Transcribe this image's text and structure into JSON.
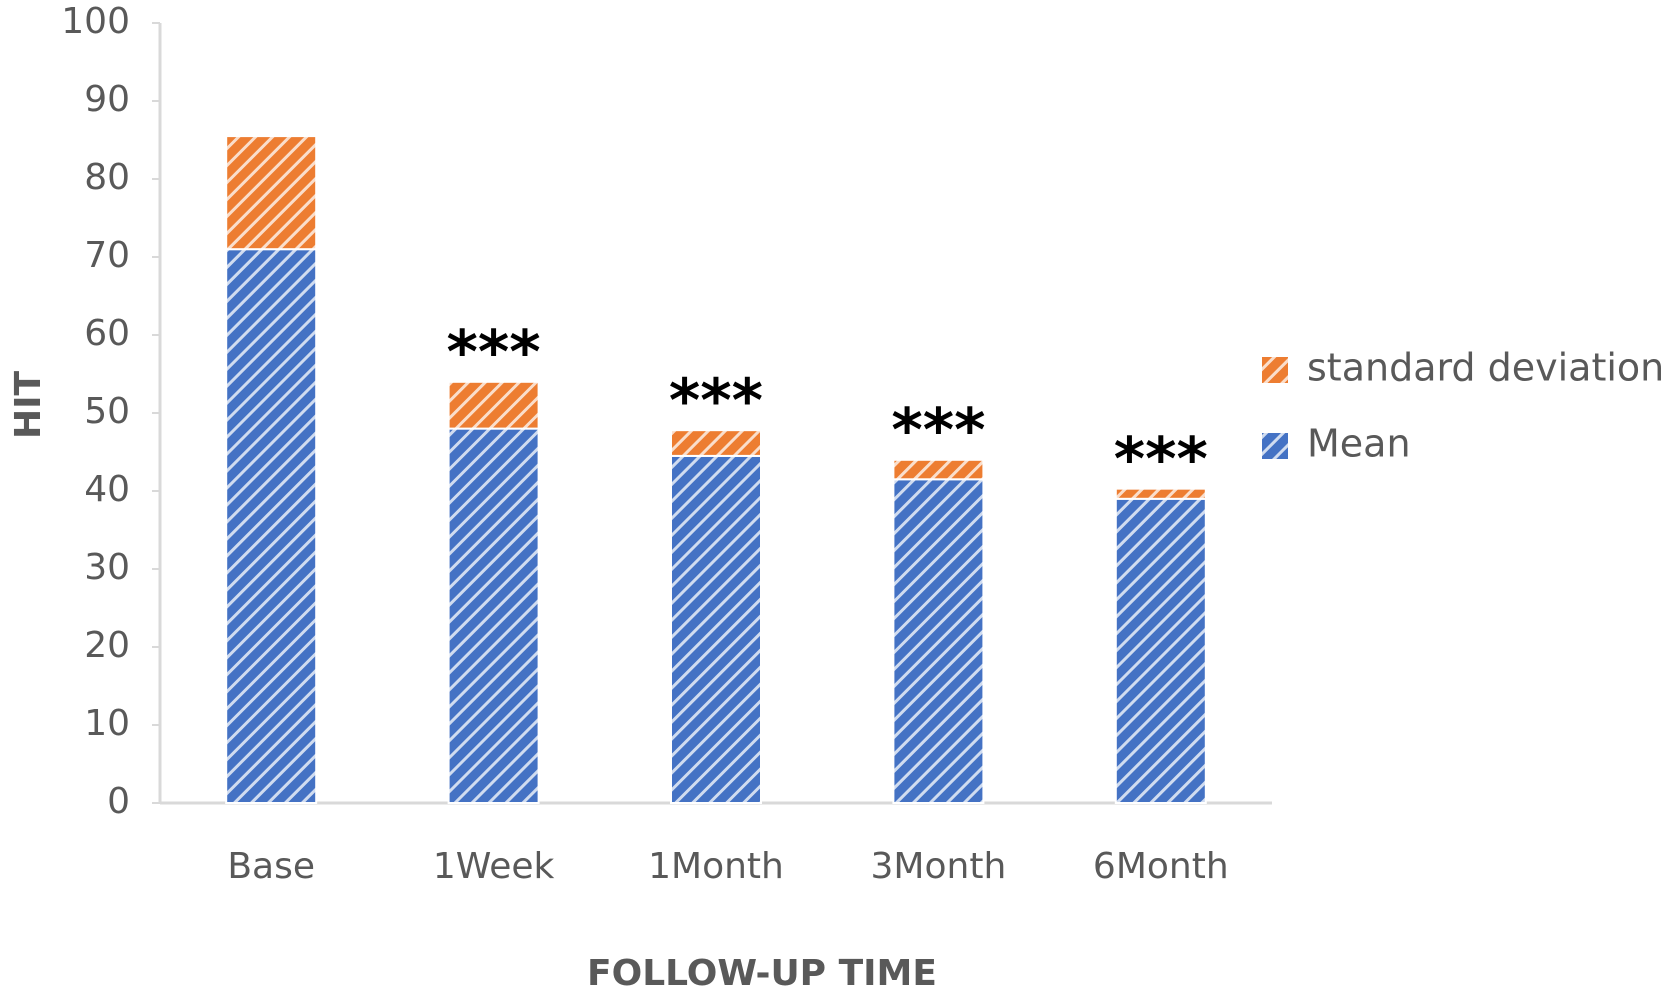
{
  "chart_data": {
    "type": "stacked_bar",
    "x_label": "FOLLOW-UP TIME",
    "y_label": "HIT",
    "categories": [
      "Base",
      "1Week",
      "1Month",
      "3Month",
      "6Month"
    ],
    "series": [
      {
        "name": "Mean",
        "color": "#4472c4",
        "values": [
          71,
          48,
          44.5,
          41.5,
          39
        ]
      },
      {
        "name": "standard deviation",
        "color": "#ed7d31",
        "values": [
          14.5,
          6,
          3.3,
          2.5,
          1.3
        ]
      }
    ],
    "significance": [
      null,
      "***",
      "***",
      "***",
      "***"
    ],
    "ylim": [
      0,
      100
    ],
    "yticks": [
      0,
      10,
      20,
      30,
      40,
      50,
      60,
      70,
      80,
      90,
      100
    ],
    "grid": false,
    "legend": "right",
    "hatch": true
  }
}
